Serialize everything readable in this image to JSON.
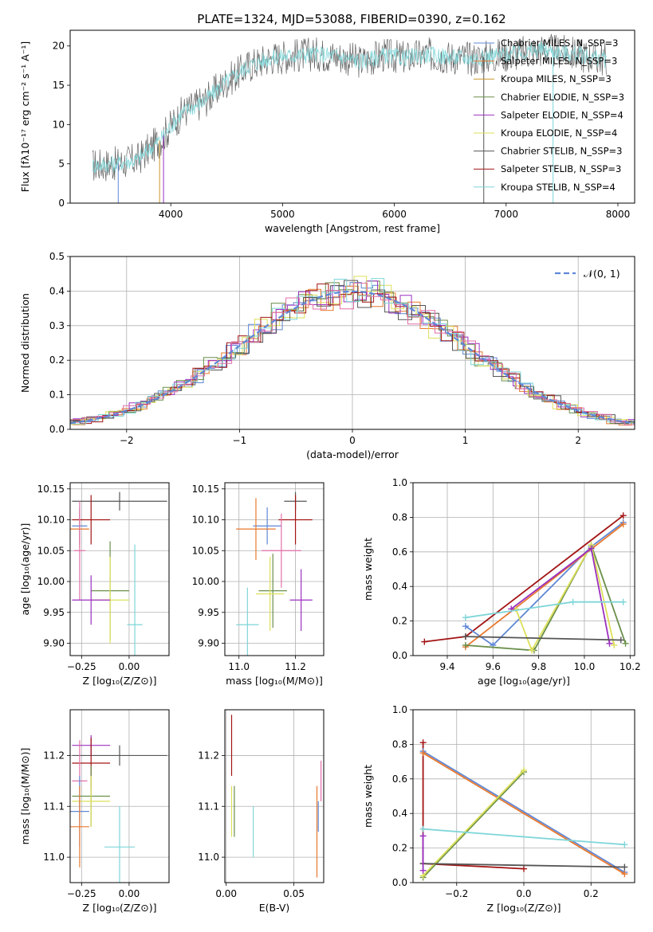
{
  "figure": {
    "title": "PLATE=1324, MJD=53088, FIBERID=0390, z=0.162"
  },
  "chart_data": [
    {
      "id": "spectrum",
      "type": "line",
      "xlabel": "wavelength [Angstrom, rest frame]",
      "ylabel": "Flux [fλ10⁻¹⁷ erg cm⁻² s⁻¹ A⁻¹]",
      "xlim": [
        3100,
        8150
      ],
      "ylim": [
        0,
        22
      ],
      "xticks": [
        4000,
        5000,
        6000,
        7000,
        8000
      ],
      "yticks": [
        0,
        5,
        10,
        15,
        20
      ],
      "legend_position": "top-right",
      "data_x": [
        3300,
        3500,
        3700,
        3900,
        4100,
        4300,
        4500,
        4700,
        4900,
        5100,
        5300,
        5500,
        5700,
        5900,
        6100,
        6300,
        6500,
        6700,
        6900,
        7100,
        7300,
        7500,
        7700,
        7900
      ],
      "data_y": [
        4.8,
        5.0,
        5.5,
        8.0,
        11.5,
        13.0,
        15.5,
        17.5,
        18.5,
        18.8,
        19.0,
        18.7,
        18.0,
        18.8,
        18.5,
        18.9,
        18.6,
        18.4,
        18.8,
        19.0,
        19.5,
        19.2,
        18.8,
        18.2
      ],
      "models": [
        {
          "name": "Chabrier MILES, N_SSP=3",
          "color": "#5f87d6"
        },
        {
          "name": "Salpeter MILES, N_SSP=3",
          "color": "#e8792f"
        },
        {
          "name": "Kroupa MILES, N_SSP=3",
          "color": "#c8972a"
        },
        {
          "name": "Chabrier ELODIE, N_SSP=3",
          "color": "#6a8f4a"
        },
        {
          "name": "Salpeter ELODIE, N_SSP=4",
          "color": "#9b30c0"
        },
        {
          "name": "Kroupa ELODIE, N_SSP=4",
          "color": "#dde05a"
        },
        {
          "name": "Chabrier STELIB, N_SSP=3",
          "color": "#555555"
        },
        {
          "name": "Salpeter STELIB, N_SSP=3",
          "color": "#a31515"
        },
        {
          "name": "Kroupa STELIB, N_SSP=4",
          "color": "#7fd6d8"
        }
      ],
      "spectrum_colors": [
        "#666666",
        "#7fd6d8"
      ],
      "cutoffs_x": [
        3530,
        3900,
        3935,
        6800,
        7420
      ]
    },
    {
      "id": "residuals",
      "type": "line",
      "xlabel": "(data-model)/error",
      "ylabel": "Normed distribution",
      "xlim": [
        -2.5,
        2.5
      ],
      "ylim": [
        0,
        0.5
      ],
      "xticks": [
        -2,
        -1,
        0,
        1,
        2
      ],
      "yticks": [
        0.0,
        0.1,
        0.2,
        0.3,
        0.4,
        0.5
      ],
      "legend": "𝒩(0, 1)",
      "normal_color": "#5f87d6",
      "hist_colors": [
        "#5f87d6",
        "#e8792f",
        "#6a8f4a",
        "#9b30c0",
        "#dde05a",
        "#555555",
        "#a31515",
        "#7fd6d8",
        "#e26fa8"
      ]
    },
    {
      "id": "age_vs_Z",
      "type": "scatter",
      "xlabel": "Z [log₁₀(Z/Z⊙)]",
      "ylabel": "age  [log₁₀(age/yr)]",
      "xlim": [
        -0.31,
        0.21
      ],
      "ylim": [
        9.88,
        10.16
      ],
      "xticks": [
        -0.25,
        0.0
      ],
      "yticks": [
        9.9,
        9.95,
        10.0,
        10.05,
        10.1,
        10.15
      ],
      "points": [
        {
          "x": -0.05,
          "y": 10.13,
          "xerr": 0.25,
          "yerr": 0.015,
          "color": "#555555"
        },
        {
          "x": -0.2,
          "y": 10.1,
          "xerr": 0.1,
          "yerr": 0.04,
          "color": "#a31515"
        },
        {
          "x": -0.26,
          "y": 10.09,
          "xerr": 0.04,
          "yerr": 0.03,
          "color": "#5f87d6"
        },
        {
          "x": -0.26,
          "y": 10.085,
          "xerr": 0.05,
          "yerr": 0.03,
          "color": "#e8792f"
        },
        {
          "x": -0.26,
          "y": 10.05,
          "xerr": 0.03,
          "yerr": 0.08,
          "color": "#e26fa8"
        },
        {
          "x": -0.1,
          "y": 9.985,
          "xerr": 0.1,
          "yerr": 0.08,
          "color": "#6a8f4a"
        },
        {
          "x": -0.1,
          "y": 9.97,
          "xerr": 0.1,
          "yerr": 0.07,
          "color": "#dde05a"
        },
        {
          "x": -0.2,
          "y": 9.97,
          "xerr": 0.1,
          "yerr": 0.04,
          "color": "#9b30c0"
        },
        {
          "x": 0.03,
          "y": 9.93,
          "xerr": 0.04,
          "yerr": 0.13,
          "color": "#7fd6d8"
        }
      ]
    },
    {
      "id": "age_vs_mass",
      "type": "scatter",
      "xlabel": "mass [log₁₀(M/M⊙)]",
      "ylabel": "",
      "xlim": [
        10.95,
        11.3
      ],
      "ylim": [
        9.88,
        10.16
      ],
      "xticks": [
        11.0,
        11.2
      ],
      "yticks": [
        9.9,
        9.95,
        10.0,
        10.05,
        10.1,
        10.15
      ],
      "points": [
        {
          "x": 11.2,
          "y": 10.13,
          "xerr": 0.04,
          "yerr": 0.015,
          "color": "#555555"
        },
        {
          "x": 11.2,
          "y": 10.1,
          "xerr": 0.06,
          "yerr": 0.04,
          "color": "#a31515"
        },
        {
          "x": 11.1,
          "y": 10.09,
          "xerr": 0.05,
          "yerr": 0.03,
          "color": "#5f87d6"
        },
        {
          "x": 11.06,
          "y": 10.085,
          "xerr": 0.07,
          "yerr": 0.05,
          "color": "#e8792f"
        },
        {
          "x": 11.15,
          "y": 10.05,
          "xerr": 0.07,
          "yerr": 0.06,
          "color": "#e26fa8"
        },
        {
          "x": 11.12,
          "y": 9.985,
          "xerr": 0.05,
          "yerr": 0.06,
          "color": "#6a8f4a"
        },
        {
          "x": 11.11,
          "y": 9.98,
          "xerr": 0.05,
          "yerr": 0.06,
          "color": "#dde05a"
        },
        {
          "x": 11.22,
          "y": 9.97,
          "xerr": 0.04,
          "yerr": 0.05,
          "color": "#9b30c0"
        },
        {
          "x": 11.03,
          "y": 9.93,
          "xerr": 0.04,
          "yerr": 0.06,
          "color": "#7fd6d8"
        }
      ]
    },
    {
      "id": "weight_vs_age",
      "type": "line",
      "xlabel": "age  [log₁₀(age/yr)]",
      "ylabel": "mass weight",
      "xlim": [
        9.25,
        10.22
      ],
      "ylim": [
        0,
        1.0
      ],
      "xticks": [
        9.4,
        9.6,
        9.8,
        10.0,
        10.2
      ],
      "yticks": [
        0.0,
        0.2,
        0.4,
        0.6,
        0.8,
        1.0
      ],
      "series": [
        {
          "x": [
            9.3,
            9.48,
            10.17
          ],
          "y": [
            0.08,
            0.11,
            0.81
          ],
          "color": "#a31515"
        },
        {
          "x": [
            9.48,
            9.6,
            10.03,
            10.17
          ],
          "y": [
            0.17,
            0.06,
            0.63,
            0.77
          ],
          "color": "#5f87d6"
        },
        {
          "x": [
            9.48,
            10.17
          ],
          "y": [
            0.05,
            0.76
          ],
          "color": "#e8792f"
        },
        {
          "x": [
            9.48,
            9.78,
            10.03,
            10.18
          ],
          "y": [
            0.06,
            0.03,
            0.64,
            0.07
          ],
          "color": "#6a8f4a"
        },
        {
          "x": [
            9.7,
            9.77,
            10.03,
            10.13
          ],
          "y": [
            0.27,
            0.03,
            0.64,
            0.06
          ],
          "color": "#dde05a"
        },
        {
          "x": [
            9.68,
            10.03,
            10.11
          ],
          "y": [
            0.27,
            0.62,
            0.07
          ],
          "color": "#9b30c0"
        },
        {
          "x": [
            9.48,
            10.16
          ],
          "y": [
            0.11,
            0.09
          ],
          "color": "#555555"
        },
        {
          "x": [
            9.48,
            9.95,
            10.17
          ],
          "y": [
            0.22,
            0.31,
            0.31
          ],
          "color": "#7fd6d8"
        }
      ]
    },
    {
      "id": "mass_vs_Z",
      "type": "scatter",
      "xlabel": "Z [log₁₀(Z/Z⊙)]",
      "ylabel": "mass [log₁₀(M/M⊙)]",
      "xlim": [
        -0.31,
        0.21
      ],
      "ylim": [
        10.95,
        11.29
      ],
      "xticks": [
        -0.25,
        0.0
      ],
      "yticks": [
        11.0,
        11.1,
        11.2
      ],
      "points": [
        {
          "x": -0.05,
          "y": 11.2,
          "xerr": 0.25,
          "yerr": 0.02,
          "color": "#555555"
        },
        {
          "x": -0.2,
          "y": 11.22,
          "xerr": 0.1,
          "yerr": 0.02,
          "color": "#9b30c0"
        },
        {
          "x": -0.2,
          "y": 11.185,
          "xerr": 0.1,
          "yerr": 0.05,
          "color": "#a31515"
        },
        {
          "x": -0.26,
          "y": 11.15,
          "xerr": 0.04,
          "yerr": 0.08,
          "color": "#e26fa8"
        },
        {
          "x": -0.2,
          "y": 11.12,
          "xerr": 0.1,
          "yerr": 0.06,
          "color": "#6a8f4a"
        },
        {
          "x": -0.2,
          "y": 11.11,
          "xerr": 0.1,
          "yerr": 0.05,
          "color": "#dde05a"
        },
        {
          "x": -0.26,
          "y": 11.09,
          "xerr": 0.05,
          "yerr": 0.07,
          "color": "#5f87d6"
        },
        {
          "x": -0.26,
          "y": 11.06,
          "xerr": 0.05,
          "yerr": 0.08,
          "color": "#e8792f"
        },
        {
          "x": -0.05,
          "y": 11.02,
          "xerr": 0.08,
          "yerr": 0.08,
          "color": "#7fd6d8"
        }
      ]
    },
    {
      "id": "mass_vs_ebv",
      "type": "scatter",
      "xlabel": "E(B-V)",
      "ylabel": "",
      "xlim": [
        -0.001,
        0.072
      ],
      "ylim": [
        10.95,
        11.29
      ],
      "xticks": [
        0.0,
        0.05
      ],
      "yticks": [
        11.0,
        11.1,
        11.2
      ],
      "points": [
        {
          "x": 0.004,
          "y": 11.22,
          "yerr": 0.06,
          "color": "#a31515"
        },
        {
          "x": 0.004,
          "y": 11.09,
          "yerr": 0.05,
          "color": "#dde05a"
        },
        {
          "x": 0.006,
          "y": 11.09,
          "yerr": 0.05,
          "color": "#6a8f4a"
        },
        {
          "x": 0.02,
          "y": 11.05,
          "yerr": 0.05,
          "color": "#7fd6d8"
        },
        {
          "x": 0.067,
          "y": 11.05,
          "yerr": 0.09,
          "color": "#e8792f"
        },
        {
          "x": 0.068,
          "y": 11.08,
          "yerr": 0.03,
          "color": "#5f87d6"
        },
        {
          "x": 0.07,
          "y": 11.15,
          "yerr": 0.04,
          "color": "#e26fa8"
        }
      ]
    },
    {
      "id": "weight_vs_Z",
      "type": "line",
      "xlabel": "Z [log₁₀(Z/Z⊙)]",
      "ylabel": "mass weight",
      "xlim": [
        -0.33,
        0.33
      ],
      "ylim": [
        0,
        1.0
      ],
      "xticks": [
        -0.2,
        0.0,
        0.2
      ],
      "yticks": [
        0.0,
        0.2,
        0.4,
        0.6,
        0.8,
        1.0
      ],
      "series": [
        {
          "x": [
            -0.3,
            -0.3,
            0.0
          ],
          "y": [
            0.81,
            0.11,
            0.08
          ],
          "color": "#a31515"
        },
        {
          "x": [
            -0.3,
            0.3
          ],
          "y": [
            0.76,
            0.06
          ],
          "color": "#5f87d6"
        },
        {
          "x": [
            -0.3,
            0.3
          ],
          "y": [
            0.75,
            0.05
          ],
          "color": "#e8792f"
        },
        {
          "x": [
            -0.3,
            0.0
          ],
          "y": [
            0.03,
            0.64
          ],
          "color": "#6a8f4a"
        },
        {
          "x": [
            -0.3,
            0.0
          ],
          "y": [
            0.04,
            0.65
          ],
          "color": "#dde05a"
        },
        {
          "x": [
            -0.3,
            0.3
          ],
          "y": [
            0.31,
            0.22
          ],
          "color": "#7fd6d8"
        },
        {
          "x": [
            -0.3,
            0.3
          ],
          "y": [
            0.11,
            0.09
          ],
          "color": "#555555"
        },
        {
          "x": [
            -0.3,
            -0.3
          ],
          "y": [
            0.27,
            0.07
          ],
          "color": "#9b30c0"
        }
      ]
    }
  ]
}
